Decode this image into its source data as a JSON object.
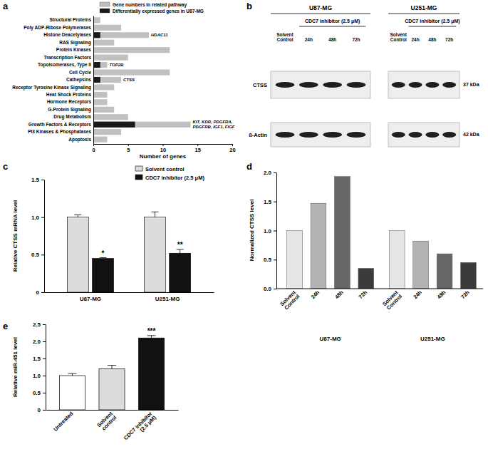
{
  "panel_labels": [
    "a",
    "b",
    "c",
    "d",
    "e"
  ],
  "chart_data": [
    {
      "type": "bar",
      "orientation": "horizontal",
      "stacked": false,
      "legend": "top",
      "categories": [
        "Structural Proteins",
        "Poly ADP-Ribose Polymerases",
        "Histone Deacetylases",
        "RAS Signaling",
        "Protein Kinases",
        "Transcription Factors",
        "Topoisomerases, Type II",
        "Cell Cycle",
        "Cathepsins",
        "Receptor Tyrosine Kinase Signaling",
        "Heat Shock Proteins",
        "Hormone Receptors",
        "G-Protein Signaling",
        "Drug Metabolism",
        "Growth Factors & Receptors",
        "PI3 Kinases & Phosphatases",
        "Apoptosis"
      ],
      "series": [
        {
          "name": "Gene numbers in related pathway",
          "color": "#c0c0c0",
          "values": [
            1,
            4,
            8,
            3,
            11,
            5,
            2,
            11,
            4,
            3,
            2,
            2,
            3,
            5,
            14,
            4,
            2
          ]
        },
        {
          "name": "Differentially expressed genes in U87-MG",
          "color": "#1a1a1a",
          "values": [
            0,
            0,
            1,
            0,
            0,
            0,
            1,
            0,
            1,
            0,
            0,
            0,
            0,
            0,
            6,
            0,
            0
          ]
        }
      ],
      "xlabel": "Number of genes",
      "xlim": [
        0,
        20
      ],
      "xticks": [
        0,
        5,
        10,
        15,
        20
      ],
      "annotations": [
        {
          "category": "Histone Deacetylases",
          "lines": [
            "HDAC11"
          ]
        },
        {
          "category": "Topoisomerases, Type II",
          "lines": [
            "TOP2B"
          ]
        },
        {
          "category": "Cathepsins",
          "lines": [
            "CTSS"
          ]
        },
        {
          "category": "Growth Factors & Receptors",
          "lines": [
            "KIT, KDR, PDGFRA,",
            "PDGFRB, IGF1, FIGF"
          ]
        }
      ]
    },
    {
      "type": "bar",
      "legend": "top-right",
      "categories": [
        "U87-MG",
        "U251-MG"
      ],
      "series": [
        {
          "name": "Solvent control",
          "color": "#dcdcdc",
          "values": [
            1.0,
            1.0
          ],
          "errors": [
            0.03,
            0.07
          ]
        },
        {
          "name": "CDC7 inhibitor (2.5 μM)",
          "color": "#111111",
          "values": [
            0.45,
            0.52
          ],
          "errors": [
            0.01,
            0.05
          ]
        }
      ],
      "ylabel": "Relative CTSS mRNA level",
      "ylim": [
        0,
        1.5
      ],
      "yticks": [
        0,
        0.5,
        {
          "value": 1,
          "label": "1.0"
        },
        1.5
      ],
      "annotations": [
        {
          "text": "*",
          "category": "U87-MG",
          "series": "CDC7 inhibitor (2.5 μM)"
        },
        {
          "text": "**",
          "category": "U251-MG",
          "series": "CDC7 inhibitor (2.5 μM)"
        }
      ]
    },
    {
      "type": "bar",
      "categories": [
        "Solvent Control",
        "24h",
        "48h",
        "72h",
        "Solvent Control",
        "24h",
        "48h",
        "72h"
      ],
      "groups": [
        "U87-MG",
        "U251-MG"
      ],
      "values": [
        1.0,
        1.47,
        1.93,
        0.35,
        1.0,
        0.82,
        0.6,
        0.45
      ],
      "colors": [
        "#e6e6e6",
        "#b3b3b3",
        "#666666",
        "#3a3a3a",
        "#e6e6e6",
        "#b3b3b3",
        "#666666",
        "#3a3a3a"
      ],
      "ylabel": "Normalized CTSS level",
      "ylim": [
        0,
        2
      ],
      "yticks": [
        {
          "value": 0,
          "label": "0.0"
        },
        {
          "value": 0.5,
          "label": "0.5"
        },
        {
          "value": 1,
          "label": "1.0"
        },
        {
          "value": 1.5,
          "label": "1.5"
        },
        {
          "value": 2,
          "label": "2.0"
        }
      ]
    },
    {
      "type": "bar",
      "categories": [
        "Untreated",
        "Solvent control",
        "CDC7 inhibitor (2.5 μM)"
      ],
      "values": [
        1.0,
        1.2,
        2.1
      ],
      "errors": [
        0.06,
        0.1,
        0.07
      ],
      "colors": [
        "#ffffff",
        "#dcdcdc",
        "#111111"
      ],
      "ylabel": "Relative miR-451 level",
      "ylim": [
        0,
        2.5
      ],
      "yticks": [
        0,
        0.5,
        {
          "value": 1,
          "label": "1.0"
        },
        1.5,
        {
          "value": 2,
          "label": "2.0"
        },
        2.5
      ],
      "annotations": [
        {
          "text": "***",
          "category": "CDC7 inhibitor (2.5 μM)"
        }
      ]
    }
  ],
  "blot": {
    "groups": [
      {
        "label": "U87-MG",
        "treatment": "CDC7 inhibitor (2.5 μM)",
        "lanes": [
          "Solvent Control",
          "24h",
          "48h",
          "72h"
        ]
      },
      {
        "label": "U251-MG",
        "treatment": "CDC7 inhibitor (2.5 μM)",
        "lanes": [
          "Solvent Control",
          "24h",
          "48h",
          "72h"
        ]
      }
    ],
    "rows": [
      {
        "label": "CTSS",
        "size": "37 kDa"
      },
      {
        "label": "ß-Actin",
        "size": "42 kDa"
      }
    ]
  }
}
